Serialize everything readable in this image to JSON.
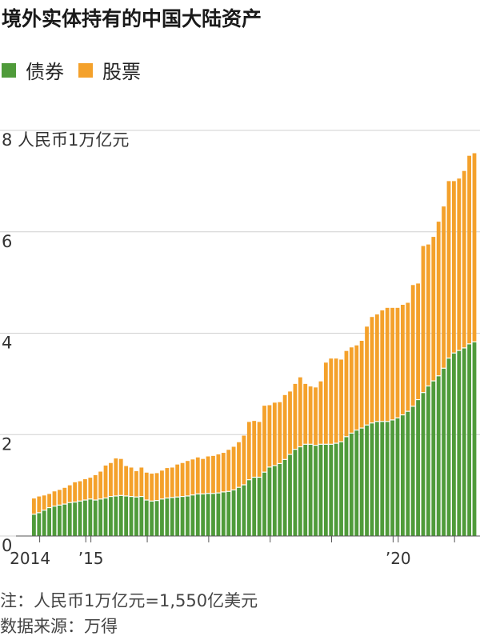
{
  "title": "境外实体持有的中国大陆资产",
  "legend": [
    {
      "label": "债券",
      "color": "#4f9b3a"
    },
    {
      "label": "股票",
      "color": "#f4a12b"
    }
  ],
  "notes": {
    "note": "注：人民币1万亿元=1,550亿美元",
    "source": "数据来源：万得"
  },
  "chart_data": {
    "type": "bar",
    "stacked": true,
    "ylabel": "8 人民币1万亿元",
    "ylim": [
      0,
      8
    ],
    "yticks": [
      "0",
      "2",
      "4",
      "6",
      "8 人民币1万亿元"
    ],
    "ytick_values": [
      0,
      2,
      4,
      6,
      8
    ],
    "xticks": [
      {
        "label": "2014",
        "index": 1
      },
      {
        "label": "’15",
        "index": 11
      },
      {
        "label": "’20",
        "index": 71
      }
    ],
    "grid": true,
    "series": [
      {
        "name": "债券",
        "color": "#4f9b3a",
        "values": [
          0.42,
          0.45,
          0.5,
          0.55,
          0.58,
          0.6,
          0.62,
          0.65,
          0.66,
          0.68,
          0.7,
          0.72,
          0.7,
          0.72,
          0.74,
          0.77,
          0.78,
          0.79,
          0.78,
          0.77,
          0.76,
          0.77,
          0.7,
          0.68,
          0.69,
          0.72,
          0.74,
          0.75,
          0.76,
          0.77,
          0.78,
          0.8,
          0.82,
          0.82,
          0.83,
          0.83,
          0.84,
          0.86,
          0.87,
          0.9,
          0.95,
          1.0,
          1.1,
          1.15,
          1.15,
          1.25,
          1.35,
          1.38,
          1.42,
          1.5,
          1.6,
          1.7,
          1.75,
          1.8,
          1.8,
          1.78,
          1.8,
          1.8,
          1.8,
          1.82,
          1.85,
          1.95,
          2.02,
          2.08,
          2.12,
          2.18,
          2.22,
          2.25,
          2.25,
          2.25,
          2.28,
          2.32,
          2.38,
          2.45,
          2.55,
          2.68,
          2.82,
          2.95,
          3.05,
          3.15,
          3.3,
          3.5,
          3.6,
          3.65,
          3.7,
          3.78,
          3.82
        ]
      },
      {
        "name": "股票",
        "color": "#f4a12b",
        "values": [
          0.32,
          0.33,
          0.3,
          0.28,
          0.3,
          0.31,
          0.33,
          0.35,
          0.4,
          0.4,
          0.42,
          0.43,
          0.5,
          0.55,
          0.65,
          0.67,
          0.75,
          0.73,
          0.6,
          0.58,
          0.52,
          0.58,
          0.55,
          0.55,
          0.55,
          0.57,
          0.6,
          0.6,
          0.65,
          0.67,
          0.7,
          0.71,
          0.73,
          0.7,
          0.74,
          0.75,
          0.77,
          0.78,
          0.83,
          0.86,
          0.9,
          0.98,
          1.15,
          1.12,
          1.1,
          1.32,
          1.23,
          1.25,
          1.22,
          1.28,
          1.25,
          1.3,
          1.38,
          1.2,
          1.15,
          1.15,
          1.25,
          1.62,
          1.7,
          1.68,
          1.63,
          1.7,
          1.7,
          1.68,
          1.73,
          1.95,
          2.1,
          2.12,
          2.2,
          2.25,
          2.22,
          2.18,
          2.18,
          2.15,
          2.4,
          2.3,
          2.9,
          2.8,
          2.85,
          3.05,
          3.2,
          3.5,
          3.4,
          3.4,
          3.5,
          3.72,
          3.73
        ]
      }
    ]
  }
}
